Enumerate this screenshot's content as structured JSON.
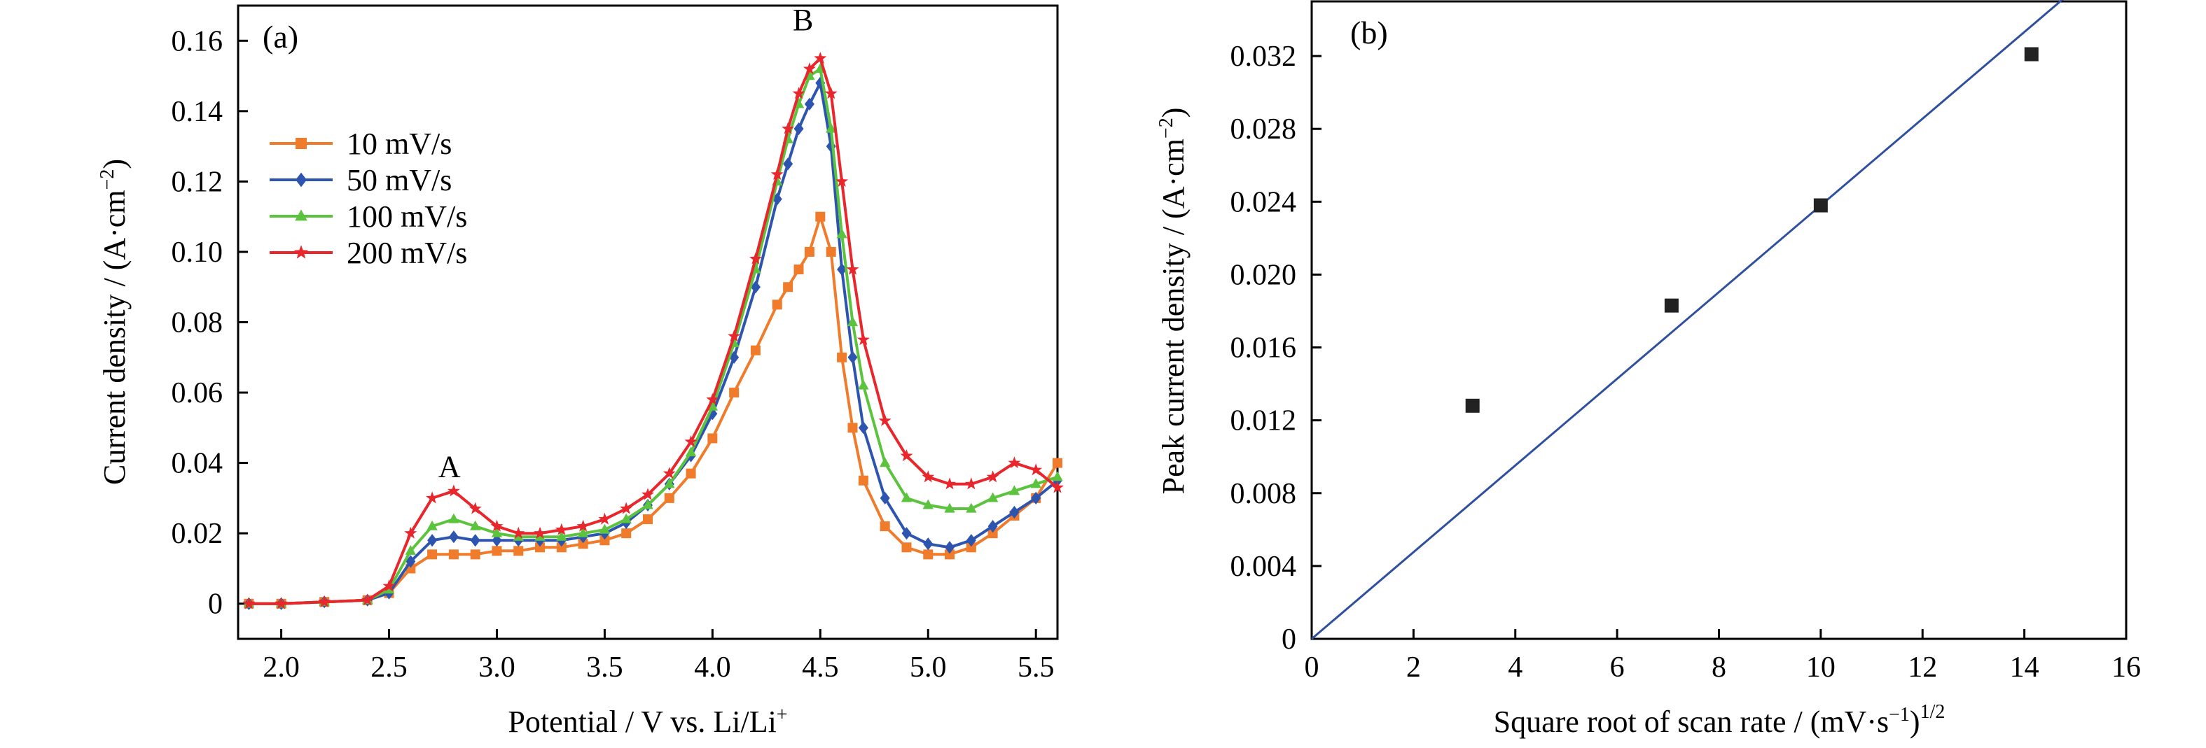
{
  "chart_data": [
    {
      "type": "line",
      "panel_label": "(a)",
      "xlabel": "Potential / V vs. Li/Li",
      "xlabel_sup": "+",
      "ylabel": "Current density / (A·cm",
      "ylabel_sup": "−2",
      "ylabel_end": ")",
      "xlim": [
        1.8,
        5.6
      ],
      "ylim": [
        -0.01,
        0.17
      ],
      "xticks": [
        2.0,
        2.5,
        3.0,
        3.5,
        4.0,
        4.5,
        5.0,
        5.5
      ],
      "xtick_labels": [
        "2.0",
        "2.5",
        "3.0",
        "3.5",
        "4.0",
        "4.5",
        "5.0",
        "5.5"
      ],
      "yticks": [
        0,
        0.02,
        0.04,
        0.06,
        0.08,
        0.1,
        0.12,
        0.14,
        0.16
      ],
      "ytick_labels": [
        "0",
        "0.02",
        "0.04",
        "0.06",
        "0.08",
        "0.10",
        "0.12",
        "0.14",
        "0.16"
      ],
      "annotations": [
        {
          "text": "A",
          "x": 2.78,
          "y": 0.036
        },
        {
          "text": "B",
          "x": 4.42,
          "y": 0.163
        }
      ],
      "legend_position": "left-middle",
      "series": [
        {
          "name": "10 mV/s",
          "color": "#f07b2a",
          "marker": "square",
          "x": [
            1.85,
            2.0,
            2.2,
            2.4,
            2.5,
            2.6,
            2.7,
            2.8,
            2.9,
            3.0,
            3.1,
            3.2,
            3.3,
            3.4,
            3.5,
            3.6,
            3.7,
            3.8,
            3.9,
            4.0,
            4.1,
            4.2,
            4.3,
            4.35,
            4.4,
            4.45,
            4.5,
            4.55,
            4.6,
            4.65,
            4.7,
            4.8,
            4.9,
            5.0,
            5.1,
            5.2,
            5.3,
            5.4,
            5.5,
            5.6
          ],
          "y": [
            0.0,
            0.0,
            0.0005,
            0.001,
            0.003,
            0.01,
            0.014,
            0.014,
            0.014,
            0.015,
            0.015,
            0.016,
            0.016,
            0.017,
            0.018,
            0.02,
            0.024,
            0.03,
            0.037,
            0.047,
            0.06,
            0.072,
            0.085,
            0.09,
            0.095,
            0.1,
            0.11,
            0.1,
            0.07,
            0.05,
            0.035,
            0.022,
            0.016,
            0.014,
            0.014,
            0.016,
            0.02,
            0.025,
            0.03,
            0.04
          ]
        },
        {
          "name": "50 mV/s",
          "color": "#2d55b0",
          "marker": "diamond",
          "x": [
            1.85,
            2.0,
            2.2,
            2.4,
            2.5,
            2.6,
            2.7,
            2.8,
            2.9,
            3.0,
            3.1,
            3.2,
            3.3,
            3.4,
            3.5,
            3.6,
            3.7,
            3.8,
            3.9,
            4.0,
            4.1,
            4.2,
            4.3,
            4.35,
            4.4,
            4.45,
            4.5,
            4.55,
            4.6,
            4.65,
            4.7,
            4.8,
            4.9,
            5.0,
            5.1,
            5.2,
            5.3,
            5.4,
            5.5,
            5.6
          ],
          "y": [
            0.0,
            0.0,
            0.0005,
            0.001,
            0.003,
            0.012,
            0.018,
            0.019,
            0.018,
            0.018,
            0.018,
            0.018,
            0.018,
            0.019,
            0.02,
            0.023,
            0.028,
            0.034,
            0.042,
            0.054,
            0.07,
            0.09,
            0.115,
            0.125,
            0.135,
            0.142,
            0.148,
            0.13,
            0.095,
            0.07,
            0.05,
            0.03,
            0.02,
            0.017,
            0.016,
            0.018,
            0.022,
            0.026,
            0.03,
            0.035
          ]
        },
        {
          "name": "100 mV/s",
          "color": "#5cc33e",
          "marker": "triangle",
          "x": [
            1.85,
            2.0,
            2.2,
            2.4,
            2.5,
            2.6,
            2.7,
            2.8,
            2.9,
            3.0,
            3.1,
            3.2,
            3.3,
            3.4,
            3.5,
            3.6,
            3.7,
            3.8,
            3.9,
            4.0,
            4.1,
            4.2,
            4.3,
            4.35,
            4.4,
            4.45,
            4.5,
            4.55,
            4.6,
            4.65,
            4.7,
            4.8,
            4.9,
            5.0,
            5.1,
            5.2,
            5.3,
            5.4,
            5.5,
            5.6
          ],
          "y": [
            0.0,
            0.0,
            0.0005,
            0.001,
            0.004,
            0.015,
            0.022,
            0.024,
            0.022,
            0.02,
            0.019,
            0.019,
            0.019,
            0.02,
            0.021,
            0.024,
            0.028,
            0.034,
            0.043,
            0.056,
            0.074,
            0.095,
            0.12,
            0.132,
            0.142,
            0.15,
            0.152,
            0.135,
            0.105,
            0.08,
            0.062,
            0.04,
            0.03,
            0.028,
            0.027,
            0.027,
            0.03,
            0.032,
            0.034,
            0.036
          ]
        },
        {
          "name": "200 mV/s",
          "color": "#e8262b",
          "marker": "star",
          "x": [
            1.85,
            2.0,
            2.2,
            2.4,
            2.5,
            2.6,
            2.7,
            2.8,
            2.9,
            3.0,
            3.1,
            3.2,
            3.3,
            3.4,
            3.5,
            3.6,
            3.7,
            3.8,
            3.9,
            4.0,
            4.1,
            4.2,
            4.3,
            4.35,
            4.4,
            4.45,
            4.5,
            4.55,
            4.6,
            4.65,
            4.7,
            4.8,
            4.9,
            5.0,
            5.1,
            5.2,
            5.3,
            5.4,
            5.5,
            5.6
          ],
          "y": [
            0.0,
            0.0,
            0.0005,
            0.001,
            0.005,
            0.02,
            0.03,
            0.032,
            0.027,
            0.022,
            0.02,
            0.02,
            0.021,
            0.022,
            0.024,
            0.027,
            0.031,
            0.037,
            0.046,
            0.058,
            0.076,
            0.098,
            0.122,
            0.135,
            0.145,
            0.152,
            0.155,
            0.145,
            0.12,
            0.095,
            0.075,
            0.052,
            0.042,
            0.036,
            0.034,
            0.034,
            0.036,
            0.04,
            0.038,
            0.033
          ]
        }
      ]
    },
    {
      "type": "scatter",
      "panel_label": "(b)",
      "xlabel": "Square root of scan rate / (mV·s",
      "xlabel_sup1": "−1",
      "xlabel_mid": ")",
      "xlabel_sup2": "1/2",
      "ylabel": "Peak current density / (A·cm",
      "ylabel_sup": "−2",
      "ylabel_end": ")",
      "xlim": [
        0,
        16
      ],
      "ylim": [
        0,
        0.035
      ],
      "xticks": [
        0,
        2,
        4,
        6,
        8,
        10,
        12,
        14,
        16
      ],
      "xtick_labels": [
        "0",
        "2",
        "4",
        "6",
        "8",
        "10",
        "12",
        "14",
        "16"
      ],
      "yticks": [
        0,
        0.004,
        0.008,
        0.012,
        0.016,
        0.02,
        0.024,
        0.028,
        0.032
      ],
      "ytick_labels": [
        "0",
        "0.004",
        "0.008",
        "0.012",
        "0.016",
        "0.020",
        "0.024",
        "0.028",
        "0.032"
      ],
      "points": {
        "x": [
          3.16,
          7.07,
          10.0,
          14.14
        ],
        "y": [
          0.0128,
          0.0183,
          0.0238,
          0.0321
        ]
      },
      "fit_line": {
        "x": [
          0,
          15
        ],
        "y": [
          0,
          0.0357
        ],
        "color": "#2f4f9f"
      },
      "marker_color": "#222222"
    }
  ]
}
